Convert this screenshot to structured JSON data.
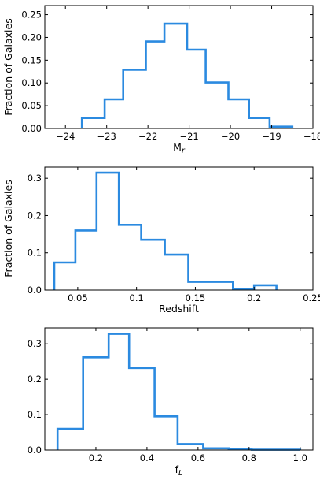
{
  "chart_data": [
    {
      "type": "histogram",
      "xlabel": "M",
      "xlabel_sub": "r",
      "ylabel": "Fraction of Galaxies",
      "xlim": [
        -24.5,
        -18
      ],
      "ylim": [
        0,
        0.27
      ],
      "xticks": [
        -24,
        -23,
        -22,
        -21,
        -20,
        -19,
        -18
      ],
      "xtick_labels": [
        "−24",
        "−23",
        "−22",
        "−21",
        "−20",
        "−19",
        "−18"
      ],
      "yticks": [
        0,
        0.05,
        0.1,
        0.15,
        0.2,
        0.25
      ],
      "ytick_labels": [
        "0.00",
        "0.05",
        "0.10",
        "0.15",
        "0.20",
        "0.25"
      ],
      "bin_edges": [
        -23.6,
        -23.05,
        -22.6,
        -22.05,
        -21.6,
        -21.05,
        -20.6,
        -20.05,
        -19.55,
        -19.05,
        -18.5
      ],
      "values": [
        0.023,
        0.064,
        0.129,
        0.191,
        0.23,
        0.173,
        0.101,
        0.064,
        0.023,
        0.004
      ],
      "color": "#2b8ae0"
    },
    {
      "type": "histogram",
      "xlabel": "Redshift",
      "ylabel": "Fraction of Galaxies",
      "xlim": [
        0.022,
        0.25
      ],
      "ylim": [
        0,
        0.33
      ],
      "xticks": [
        0.05,
        0.1,
        0.15,
        0.2,
        0.25
      ],
      "xtick_labels": [
        "0.05",
        "0.1",
        "0.15",
        "0.2",
        "0.25"
      ],
      "yticks": [
        0,
        0.1,
        0.2,
        0.3
      ],
      "ytick_labels": [
        "0.0",
        "0.1",
        "0.2",
        "0.3"
      ],
      "bin_edges": [
        0.03,
        0.048,
        0.066,
        0.085,
        0.104,
        0.124,
        0.144,
        0.163,
        0.182,
        0.2,
        0.219
      ],
      "values": [
        0.074,
        0.16,
        0.315,
        0.175,
        0.135,
        0.095,
        0.022,
        0.022,
        0.002,
        0.013
      ],
      "color": "#2b8ae0"
    },
    {
      "type": "histogram",
      "xlabel": "f",
      "xlabel_sub": "L",
      "ylabel": "",
      "xlim": [
        0,
        1.05
      ],
      "ylim": [
        0,
        0.345
      ],
      "xticks": [
        0.2,
        0.4,
        0.6,
        0.8,
        1.0
      ],
      "xtick_labels": [
        "0.2",
        "0.4",
        "0.6",
        "0.8",
        "1.0"
      ],
      "yticks": [
        0,
        0.1,
        0.2,
        0.3
      ],
      "ytick_labels": [
        "0.0",
        "0.1",
        "0.2",
        "0.3"
      ],
      "bin_edges": [
        0.05,
        0.15,
        0.25,
        0.33,
        0.43,
        0.52,
        0.62,
        0.72,
        0.81,
        0.91,
        1.0
      ],
      "values": [
        0.06,
        0.262,
        0.328,
        0.232,
        0.095,
        0.017,
        0.005,
        0.002,
        0.001,
        0.001
      ],
      "color": "#2b8ae0"
    }
  ]
}
